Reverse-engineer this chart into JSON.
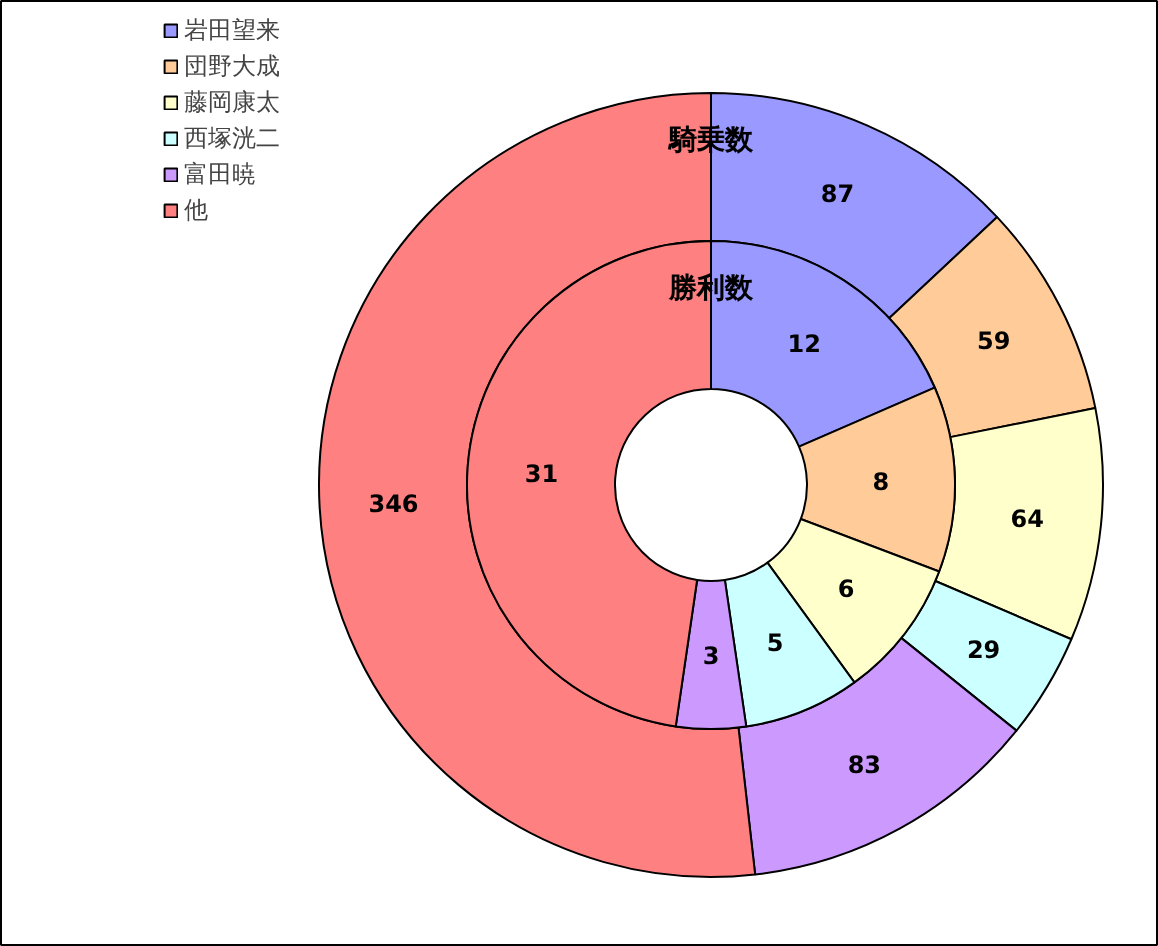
{
  "chart_data": {
    "type": "donut",
    "categories": [
      "岩田望来",
      "団野大成",
      "藤岡康太",
      "西塚洸二",
      "富田暁",
      "他"
    ],
    "colors": [
      "#9999ff",
      "#ffcc99",
      "#ffffcc",
      "#ccffff",
      "#cc99ff",
      "#ff8080"
    ],
    "series": [
      {
        "name": "騎乗数",
        "values": [
          87,
          59,
          64,
          29,
          83,
          346
        ]
      },
      {
        "name": "勝利数",
        "values": [
          12,
          8,
          6,
          5,
          3,
          31
        ]
      }
    ],
    "data_labels": true,
    "legend": "top left"
  }
}
